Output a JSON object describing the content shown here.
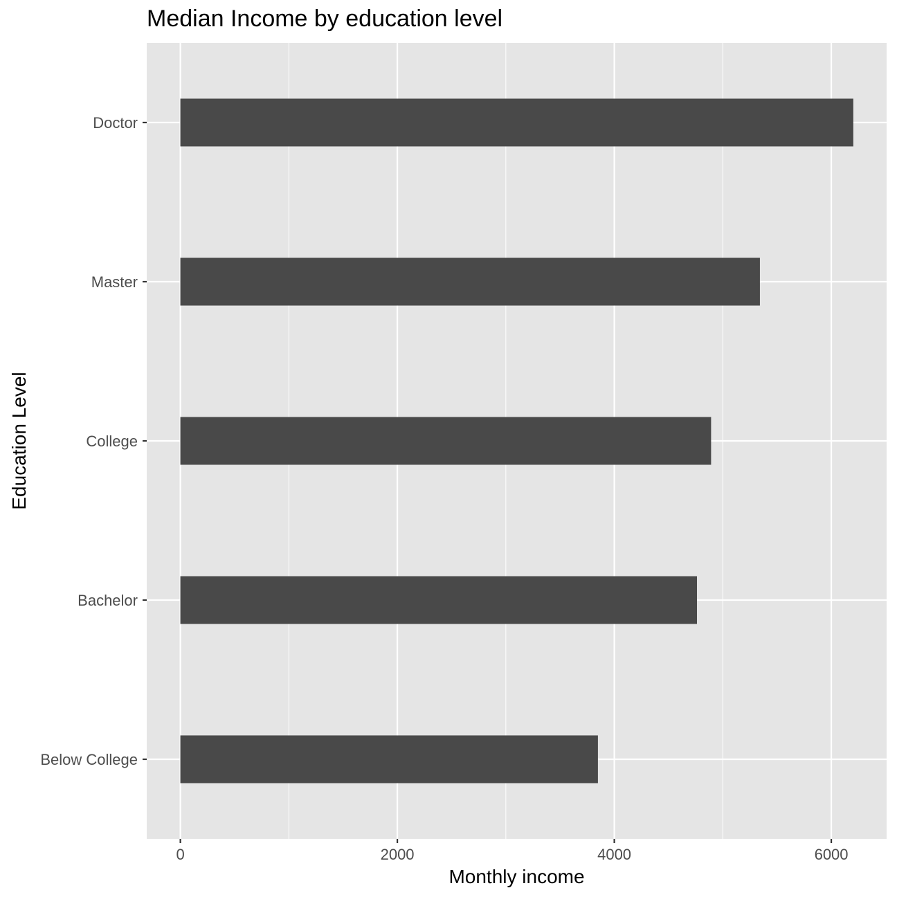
{
  "chart_data": {
    "type": "bar",
    "orientation": "horizontal",
    "title": "Median Income by education level",
    "xlabel": "Monthly income",
    "ylabel": "Education Level",
    "categories": [
      "Doctor",
      "Master",
      "College",
      "Bachelor",
      "Below College"
    ],
    "values": [
      6203,
      5342,
      4892,
      4762,
      3849
    ],
    "xlim": [
      -310,
      6510
    ],
    "xticks": [
      0,
      2000,
      4000,
      6000
    ],
    "grid": true,
    "legend": "none",
    "colors": {
      "panel": "#e5e5e5",
      "grid": "#ffffff",
      "bar": "#494949",
      "tick": "#333333"
    }
  }
}
